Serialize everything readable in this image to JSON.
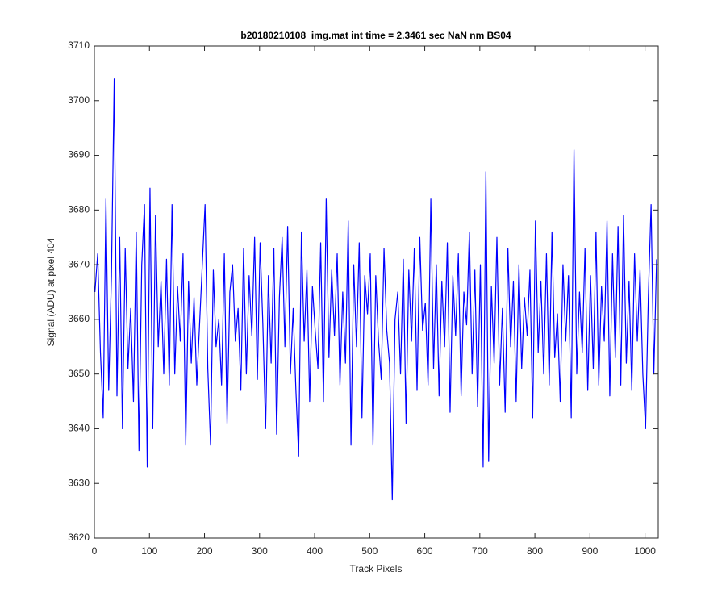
{
  "chart_data": {
    "type": "line",
    "title": "b20180210108_img.mat int time = 2.3461 sec  NaN nm BS04",
    "x_label": "Track Pixels",
    "y_label": "Signal (ADU) at pixel 404",
    "color": "#0000ff",
    "xlim": [
      0,
      1024
    ],
    "ylim": [
      3620,
      3710
    ],
    "xticks": [
      0,
      100,
      200,
      300,
      400,
      500,
      600,
      700,
      800,
      900,
      1000
    ],
    "yticks": [
      3620,
      3630,
      3640,
      3650,
      3660,
      3670,
      3680,
      3690,
      3700,
      3710
    ],
    "grid": false,
    "x": [
      1,
      6,
      11,
      16,
      21,
      26,
      31,
      36,
      41,
      46,
      51,
      56,
      61,
      66,
      71,
      76,
      81,
      86,
      91,
      96,
      101,
      106,
      111,
      116,
      121,
      126,
      131,
      136,
      141,
      146,
      151,
      156,
      161,
      166,
      171,
      176,
      181,
      186,
      191,
      196,
      201,
      206,
      211,
      216,
      221,
      226,
      231,
      236,
      241,
      246,
      251,
      256,
      261,
      266,
      271,
      276,
      281,
      286,
      291,
      296,
      301,
      306,
      311,
      316,
      321,
      326,
      331,
      336,
      341,
      346,
      351,
      356,
      361,
      366,
      371,
      376,
      381,
      386,
      391,
      396,
      401,
      406,
      411,
      416,
      421,
      426,
      431,
      436,
      441,
      446,
      451,
      456,
      461,
      466,
      471,
      476,
      481,
      486,
      491,
      496,
      501,
      506,
      511,
      516,
      521,
      526,
      531,
      536,
      541,
      546,
      551,
      556,
      561,
      566,
      571,
      576,
      581,
      586,
      591,
      596,
      601,
      606,
      611,
      616,
      621,
      626,
      631,
      636,
      641,
      646,
      651,
      656,
      661,
      666,
      671,
      676,
      681,
      686,
      691,
      696,
      701,
      706,
      711,
      716,
      721,
      726,
      731,
      736,
      741,
      746,
      751,
      756,
      761,
      766,
      771,
      776,
      781,
      786,
      791,
      796,
      801,
      806,
      811,
      816,
      821,
      826,
      831,
      836,
      841,
      846,
      851,
      856,
      861,
      866,
      871,
      876,
      881,
      886,
      891,
      896,
      901,
      906,
      911,
      916,
      921,
      926,
      931,
      936,
      941,
      946,
      951,
      956,
      961,
      966,
      971,
      976,
      981,
      986,
      991,
      996,
      1001,
      1006,
      1011,
      1016,
      1021
    ],
    "values": [
      3665,
      3672,
      3654,
      3642,
      3682,
      3647,
      3668,
      3704,
      3646,
      3675,
      3640,
      3673,
      3651,
      3662,
      3645,
      3676,
      3636,
      3670,
      3681,
      3633,
      3684,
      3640,
      3679,
      3655,
      3667,
      3650,
      3671,
      3648,
      3681,
      3650,
      3666,
      3656,
      3672,
      3637,
      3667,
      3652,
      3664,
      3648,
      3659,
      3670,
      3681,
      3651,
      3637,
      3669,
      3655,
      3660,
      3648,
      3672,
      3641,
      3665,
      3670,
      3656,
      3662,
      3647,
      3673,
      3650,
      3668,
      3657,
      3675,
      3649,
      3674,
      3659,
      3640,
      3668,
      3652,
      3673,
      3639,
      3664,
      3675,
      3655,
      3677,
      3650,
      3662,
      3647,
      3635,
      3676,
      3656,
      3669,
      3645,
      3666,
      3658,
      3651,
      3674,
      3645,
      3682,
      3653,
      3669,
      3657,
      3672,
      3648,
      3665,
      3652,
      3678,
      3637,
      3670,
      3655,
      3674,
      3642,
      3668,
      3661,
      3672,
      3637,
      3668,
      3656,
      3649,
      3673,
      3658,
      3652,
      3627,
      3660,
      3665,
      3650,
      3671,
      3641,
      3669,
      3656,
      3673,
      3647,
      3675,
      3658,
      3663,
      3648,
      3682,
      3651,
      3670,
      3646,
      3667,
      3655,
      3674,
      3643,
      3668,
      3657,
      3672,
      3646,
      3665,
      3659,
      3676,
      3650,
      3669,
      3644,
      3670,
      3633,
      3687,
      3634,
      3666,
      3652,
      3675,
      3648,
      3662,
      3643,
      3673,
      3655,
      3667,
      3645,
      3670,
      3651,
      3664,
      3657,
      3669,
      3642,
      3678,
      3654,
      3667,
      3650,
      3672,
      3648,
      3676,
      3653,
      3661,
      3645,
      3670,
      3656,
      3668,
      3642,
      3691,
      3650,
      3665,
      3654,
      3673,
      3647,
      3668,
      3651,
      3676,
      3648,
      3666,
      3656,
      3678,
      3646,
      3672,
      3653,
      3677,
      3648,
      3679,
      3652,
      3667,
      3647,
      3672,
      3656,
      3669,
      3650,
      3640,
      3664,
      3681,
      3650,
      3671
    ]
  }
}
